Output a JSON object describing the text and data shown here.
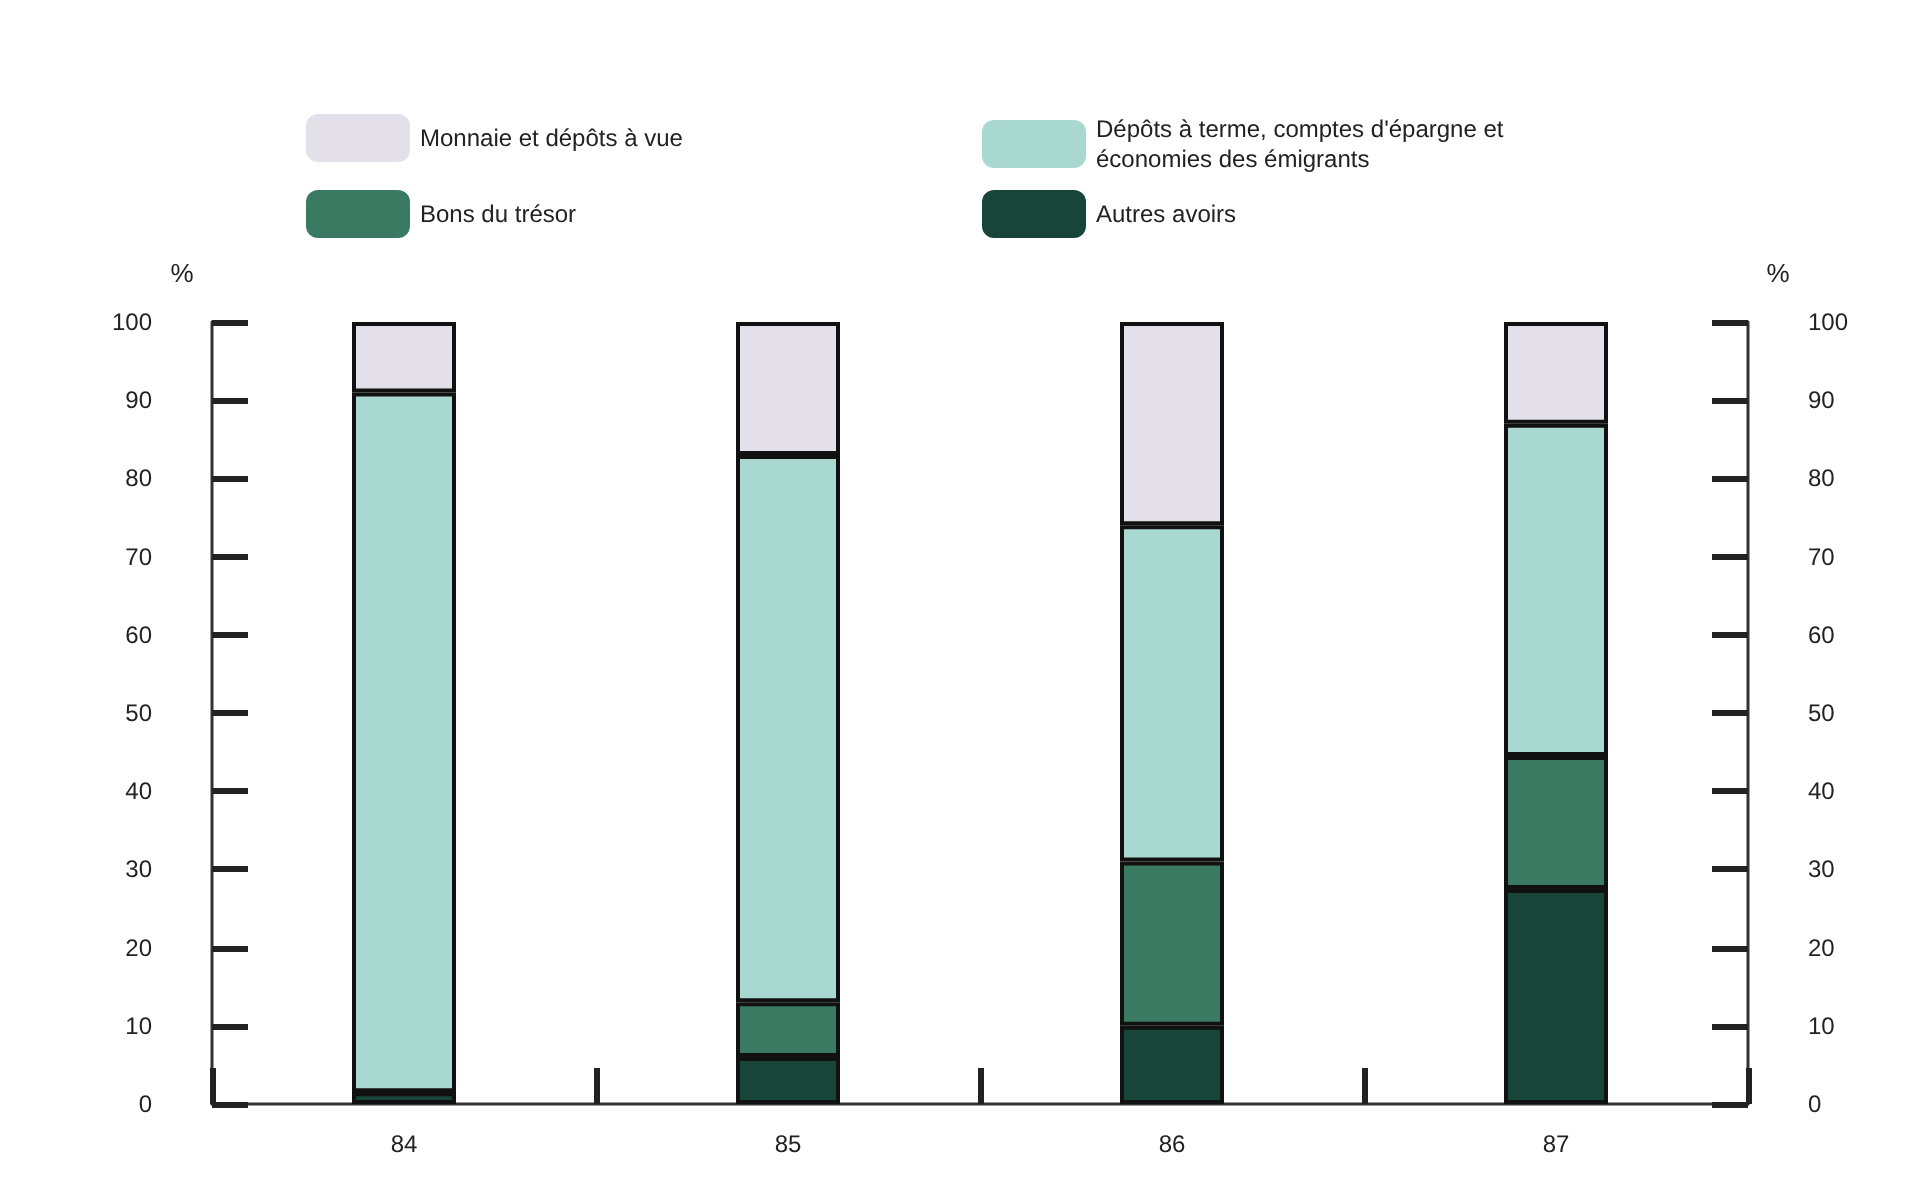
{
  "chart_data": {
    "type": "bar",
    "stacked": true,
    "categories": [
      "84",
      "85",
      "86",
      "87"
    ],
    "series": [
      {
        "name": "Autres avoirs",
        "color": "#17453a",
        "values": [
          1.5,
          6,
          10,
          27.5
        ]
      },
      {
        "name": "Bons du trésor",
        "color": "#3a7a62",
        "values": [
          0,
          7,
          21,
          17
        ]
      },
      {
        "name": "Dépôts à terme, comptes d'épargne et économies des émigrants",
        "color": "#a8d8cf",
        "values": [
          89.5,
          70,
          43,
          42.5
        ]
      },
      {
        "name": "Monnaie et dépôts à vue",
        "color": "#e4e0ea",
        "values": [
          9,
          17,
          26,
          13
        ]
      }
    ],
    "ylabel": "%",
    "y2label": "%",
    "ylim": [
      0,
      100
    ],
    "yticks": [
      0,
      10,
      20,
      30,
      40,
      50,
      60,
      70,
      80,
      90,
      100
    ],
    "y2lim": [
      0,
      100
    ],
    "y2ticks": [
      0,
      10,
      20,
      30,
      40,
      50,
      60,
      70,
      80,
      90,
      100
    ],
    "grid": false,
    "legend": "top"
  }
}
